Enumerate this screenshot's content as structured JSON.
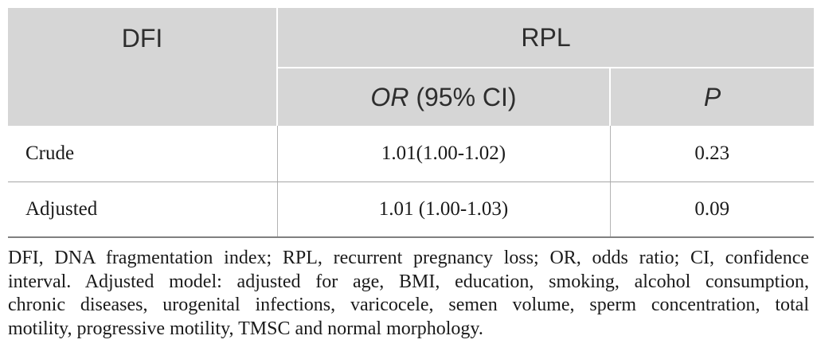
{
  "colors": {
    "header_bg": "#d6d6d6",
    "header_text": "#2e2e2e",
    "body_text": "#1a1a1a",
    "separator": "#ffffff",
    "rule": "#a6a6a6",
    "rule_strong": "#808080"
  },
  "table": {
    "header": {
      "dfi": "DFI",
      "rpl": "RPL",
      "or_italic": "OR",
      "or_rest": " (95% CI)",
      "p": "P"
    },
    "rows": [
      {
        "label": "Crude",
        "or_ci": "1.01(1.00-1.02)",
        "p": "0.23"
      },
      {
        "label": "Adjusted",
        "or_ci": "1.01 (1.00-1.03)",
        "p": "0.09"
      }
    ]
  },
  "footnote": {
    "lines": [
      "DFI, DNA fragmentation index; RPL, recurrent pregnancy loss; OR, odds ratio; CI, confidence",
      "interval. Adjusted model: adjusted for age, BMI, education, smoking, alcohol consumption,",
      "chronic diseases, urogenital infections, varicocele, semen volume, sperm concentration, total",
      "motility, progressive motility, TMSC and normal morphology."
    ]
  }
}
